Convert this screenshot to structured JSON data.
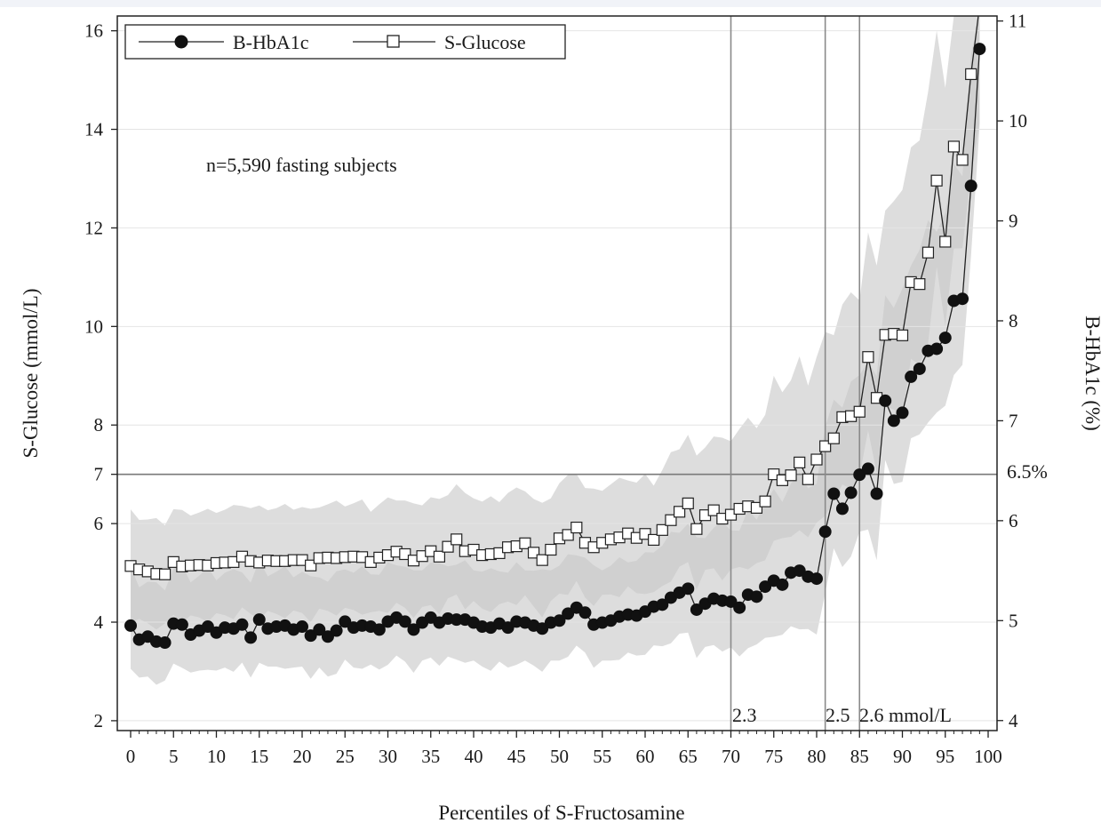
{
  "chart_data": {
    "type": "line",
    "annotation": "n=5,590 fasting subjects",
    "xlabel": "Percentiles of S-Fructosamine",
    "ylabel_left": "S-Glucose (mmol/L)",
    "ylabel_right": "B-HbA1c (%)",
    "xlim": [
      0,
      100
    ],
    "ylim_left": [
      1.8,
      16.3
    ],
    "ylim_right": [
      3.9,
      11.05
    ],
    "x_ticks": [
      "0",
      "5",
      "10",
      "15",
      "20",
      "25",
      "30",
      "35",
      "40",
      "45",
      "50",
      "55",
      "60",
      "65",
      "70",
      "75",
      "80",
      "85",
      "90",
      "95",
      "100"
    ],
    "y_left_ticks": [
      "2",
      "4",
      "6",
      "7",
      "8",
      "10",
      "12",
      "14",
      "16"
    ],
    "y_right_ticks": [
      "4",
      "5",
      "6",
      "7",
      "8",
      "9",
      "10",
      "11"
    ],
    "grid": true,
    "legend": {
      "placement": "top-left",
      "items": [
        "B-HbA1c",
        "S-Glucose"
      ]
    },
    "reference_lines": {
      "horizontal": {
        "y": 7,
        "label": "6.5%"
      },
      "vertical": [
        {
          "x": 70,
          "label": "2.3"
        },
        {
          "x": 81,
          "label": "2.5"
        },
        {
          "x": 85,
          "label": "2.6 mmol/L"
        }
      ]
    },
    "series": [
      {
        "name": "B-HbA1c",
        "axis": "right",
        "marker": "filled-circle",
        "x": [
          0,
          1,
          2,
          3,
          4,
          5,
          6,
          7,
          8,
          9,
          10,
          11,
          12,
          13,
          14,
          15,
          16,
          17,
          18,
          19,
          20,
          21,
          22,
          23,
          24,
          25,
          26,
          27,
          28,
          29,
          30,
          31,
          32,
          33,
          34,
          35,
          36,
          37,
          38,
          39,
          40,
          41,
          42,
          43,
          44,
          45,
          46,
          47,
          48,
          49,
          50,
          51,
          52,
          53,
          54,
          55,
          56,
          57,
          58,
          59,
          60,
          61,
          62,
          63,
          64,
          65,
          66,
          67,
          68,
          69,
          70,
          71,
          72,
          73,
          74,
          75,
          76,
          77,
          78,
          79,
          80,
          81,
          82,
          83,
          84,
          85,
          86,
          87,
          88,
          89,
          90,
          91,
          92,
          93,
          94,
          95,
          96,
          97,
          98,
          99
        ],
        "values": [
          4.95,
          4.81,
          4.84,
          4.79,
          4.78,
          4.97,
          4.96,
          4.86,
          4.9,
          4.94,
          4.88,
          4.93,
          4.92,
          4.96,
          4.83,
          5.01,
          4.92,
          4.94,
          4.95,
          4.91,
          4.94,
          4.85,
          4.91,
          4.84,
          4.9,
          4.99,
          4.93,
          4.95,
          4.94,
          4.91,
          4.99,
          5.03,
          4.99,
          4.91,
          4.98,
          5.03,
          4.98,
          5.02,
          5.01,
          5.01,
          4.98,
          4.94,
          4.93,
          4.97,
          4.93,
          4.99,
          4.98,
          4.95,
          4.92,
          4.98,
          5.0,
          5.07,
          5.13,
          5.08,
          4.96,
          4.98,
          5.0,
          5.04,
          5.06,
          5.05,
          5.09,
          5.14,
          5.16,
          5.23,
          5.28,
          5.32,
          5.11,
          5.17,
          5.22,
          5.2,
          5.19,
          5.13,
          5.26,
          5.24,
          5.34,
          5.4,
          5.36,
          5.48,
          5.5,
          5.44,
          5.42,
          5.89,
          6.27,
          6.12,
          6.28,
          6.46,
          6.52,
          6.27,
          7.2,
          7.0,
          7.08,
          7.44,
          7.52,
          7.7,
          7.72,
          7.83,
          8.2,
          8.22,
          9.35,
          10.72
        ]
      },
      {
        "name": "S-Glucose",
        "axis": "left",
        "marker": "open-square",
        "x": [
          0,
          1,
          2,
          3,
          4,
          5,
          6,
          7,
          8,
          9,
          10,
          11,
          12,
          13,
          14,
          15,
          16,
          17,
          18,
          19,
          20,
          21,
          22,
          23,
          24,
          25,
          26,
          27,
          28,
          29,
          30,
          31,
          32,
          33,
          34,
          35,
          36,
          37,
          38,
          39,
          40,
          41,
          42,
          43,
          44,
          45,
          46,
          47,
          48,
          49,
          50,
          51,
          52,
          53,
          54,
          55,
          56,
          57,
          58,
          59,
          60,
          61,
          62,
          63,
          64,
          65,
          66,
          67,
          68,
          69,
          70,
          71,
          72,
          73,
          74,
          75,
          76,
          77,
          78,
          79,
          80,
          81,
          82,
          83,
          84,
          85,
          86,
          87,
          88,
          89,
          90,
          91,
          92,
          93,
          94,
          95,
          96,
          97,
          98,
          99
        ],
        "values": [
          5.14,
          5.07,
          5.03,
          4.98,
          4.97,
          5.22,
          5.13,
          5.15,
          5.16,
          5.15,
          5.2,
          5.21,
          5.22,
          5.33,
          5.24,
          5.21,
          5.25,
          5.24,
          5.24,
          5.26,
          5.26,
          5.15,
          5.3,
          5.31,
          5.3,
          5.32,
          5.33,
          5.32,
          5.22,
          5.31,
          5.36,
          5.43,
          5.38,
          5.25,
          5.34,
          5.44,
          5.33,
          5.53,
          5.68,
          5.44,
          5.47,
          5.36,
          5.38,
          5.4,
          5.52,
          5.54,
          5.6,
          5.41,
          5.26,
          5.47,
          5.7,
          5.77,
          5.92,
          5.61,
          5.52,
          5.61,
          5.68,
          5.72,
          5.8,
          5.71,
          5.79,
          5.67,
          5.87,
          6.07,
          6.24,
          6.41,
          5.89,
          6.17,
          6.27,
          6.1,
          6.18,
          6.3,
          6.35,
          6.32,
          6.45,
          7.0,
          6.88,
          6.98,
          7.24,
          6.9,
          7.3,
          7.57,
          7.73,
          8.16,
          8.18,
          8.27,
          9.38,
          8.55,
          9.83,
          9.85,
          9.82,
          10.9,
          10.86,
          11.5,
          12.96,
          11.72,
          13.65,
          13.38,
          15.12,
          16.5
        ]
      }
    ]
  }
}
